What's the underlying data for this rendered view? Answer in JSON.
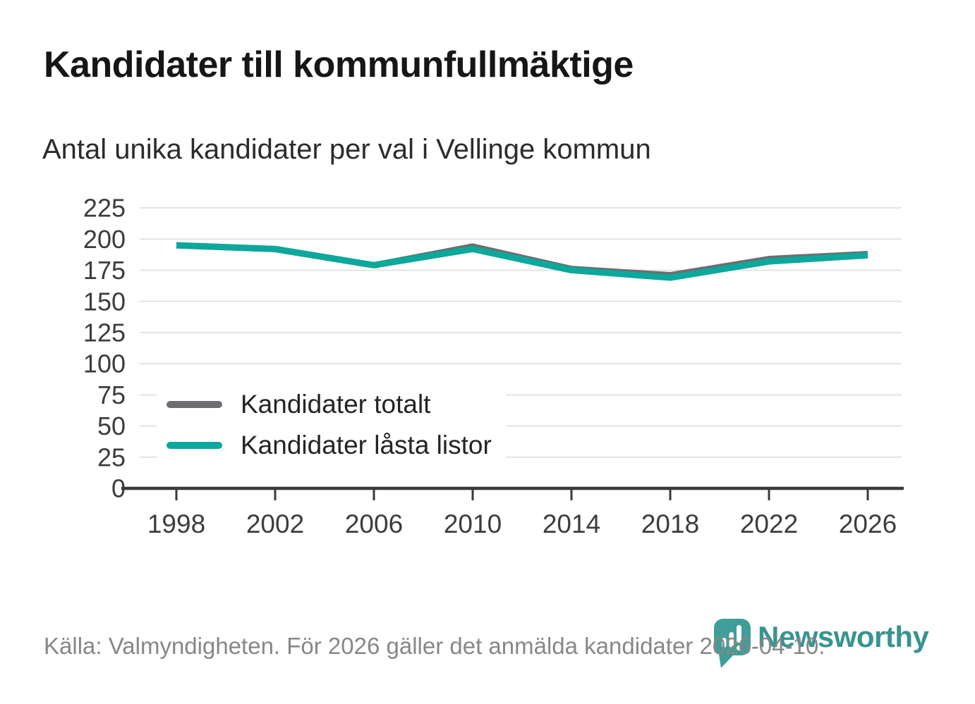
{
  "header": {
    "title": "Kandidater till kommunfullmäktige",
    "subtitle": "Antal unika kandidater per val i Vellinge kommun"
  },
  "chart_data": {
    "type": "line",
    "title": "Kandidater till kommunfullmäktige",
    "subtitle": "Antal unika kandidater per val i Vellinge kommun",
    "categories": [
      "1998",
      "2002",
      "2006",
      "2010",
      "2014",
      "2018",
      "2022",
      "2026"
    ],
    "series": [
      {
        "name": "Kandidater totalt",
        "color": "#6e6d71",
        "values": [
          195,
          192,
          179,
          194,
          176,
          171,
          184,
          188
        ]
      },
      {
        "name": "Kandidater låsta listor",
        "color": "#0ca89c",
        "values": [
          195,
          192,
          179,
          192,
          175,
          169,
          182,
          187
        ]
      }
    ],
    "xlabel": "",
    "ylabel": "",
    "ylim": [
      0,
      225
    ],
    "ytick_step": 25,
    "yticks": [
      0,
      25,
      50,
      75,
      100,
      125,
      150,
      175,
      200,
      225
    ],
    "grid": "horizontal",
    "legend_position": "inside-left"
  },
  "colors": {
    "grid": "#e3e3e3",
    "axis": "#3a3a3a",
    "tick_text": "#3c3c3c",
    "accent_teal": "#0ca89c",
    "series_gray": "#6e6d71",
    "logo_teal": "#3f9e99",
    "footer_gray": "#878787"
  },
  "footer": {
    "source": "Källa: Valmyndigheten. För 2026 gäller det anmälda kandidater 2026-04-10."
  },
  "branding": {
    "logo_text": "Newsworthy",
    "logo_icon": "newsworthy-speech-bubble-bar-chart-icon"
  }
}
